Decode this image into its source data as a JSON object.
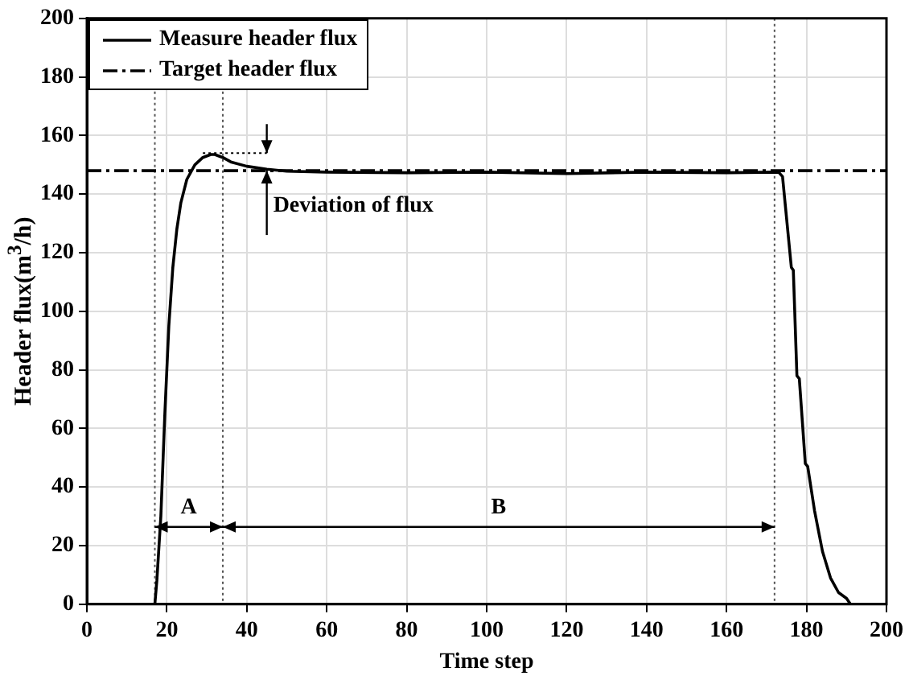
{
  "chart_data": {
    "type": "line",
    "xlabel": "Time step",
    "ylabel": "Header flux(m$^{3}$/h)",
    "xlim": [
      0,
      200
    ],
    "ylim": [
      0,
      200
    ],
    "xticks": [
      0,
      20,
      40,
      60,
      80,
      100,
      120,
      140,
      160,
      180,
      200
    ],
    "yticks": [
      0,
      20,
      40,
      60,
      80,
      100,
      120,
      140,
      160,
      180,
      200
    ],
    "grid": true,
    "legend": "top left",
    "marker": "none",
    "series": [
      {
        "name": "Measure header flux",
        "color": "#000000",
        "line_style": "solid",
        "x": [
          0,
          17,
          17.5,
          18.5,
          19.5,
          20.5,
          21.5,
          22.5,
          23.5,
          25,
          27,
          29,
          31,
          32,
          34,
          36,
          40,
          45,
          50,
          60,
          80,
          100,
          120,
          140,
          160,
          173,
          174,
          176.2,
          176.7,
          177.6,
          178.2,
          179.7,
          180.3,
          182,
          184,
          186,
          188,
          190,
          191,
          195
        ],
        "values": [
          0,
          0,
          8,
          30,
          65,
          95,
          115,
          128,
          137,
          145,
          150,
          152.5,
          153.5,
          153.5,
          152.5,
          151,
          149.5,
          148.5,
          147.8,
          147.5,
          147.3,
          147.5,
          147,
          147.5,
          147.3,
          147.5,
          146,
          115,
          114,
          78,
          77,
          48,
          47,
          32,
          18,
          9,
          4,
          2,
          0,
          0
        ]
      },
      {
        "name": "Target header flux",
        "color": "#000000",
        "line_style": "dashed",
        "x": [
          0,
          200
        ],
        "values": [
          148,
          148
        ]
      },
      {
        "color": "#000000",
        "line_style": "dotted",
        "x": [
          29,
          45
        ],
        "values": [
          154,
          154
        ]
      }
    ],
    "ref_lines": [
      {
        "axis": "x",
        "value": 17,
        "line_style": "dotted",
        "color": "#555555"
      },
      {
        "axis": "x",
        "value": 34,
        "line_style": "dotted",
        "color": "#555555"
      },
      {
        "axis": "x",
        "value": 172,
        "line_style": "dotted",
        "color": "#555555"
      }
    ],
    "annotations": [
      "A",
      "B",
      "Deviation of flux"
    ]
  }
}
